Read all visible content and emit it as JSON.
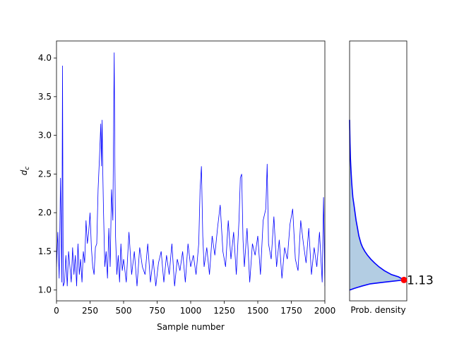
{
  "chart_data": [
    {
      "type": "line",
      "panel": "trace",
      "xlabel": "Sample number",
      "ylabel": "d_c",
      "xlim": [
        0,
        2000
      ],
      "ylim": [
        0.86,
        4.22
      ],
      "xticks": [
        "0",
        "250",
        "500",
        "750",
        "1000",
        "1250",
        "1500",
        "1750",
        "2000"
      ],
      "yticks": [
        "1.0",
        "1.5",
        "2.0",
        "2.5",
        "3.0",
        "3.5",
        "4.0"
      ],
      "grid": false,
      "series": [
        {
          "color": "#0000ff",
          "x": [
            0,
            10,
            20,
            30,
            40,
            45,
            50,
            60,
            70,
            80,
            90,
            100,
            110,
            120,
            130,
            140,
            150,
            160,
            170,
            180,
            190,
            200,
            210,
            220,
            230,
            240,
            250,
            260,
            270,
            280,
            290,
            300,
            310,
            320,
            330,
            335,
            340,
            345,
            350,
            360,
            370,
            380,
            390,
            400,
            410,
            420,
            430,
            435,
            440,
            450,
            460,
            470,
            480,
            490,
            500,
            520,
            540,
            560,
            580,
            600,
            620,
            640,
            660,
            680,
            700,
            720,
            740,
            760,
            780,
            800,
            820,
            840,
            860,
            880,
            900,
            920,
            940,
            960,
            980,
            1000,
            1020,
            1040,
            1060,
            1070,
            1080,
            1090,
            1100,
            1120,
            1140,
            1160,
            1180,
            1200,
            1220,
            1240,
            1260,
            1280,
            1300,
            1320,
            1340,
            1360,
            1370,
            1380,
            1390,
            1400,
            1420,
            1440,
            1460,
            1480,
            1500,
            1520,
            1540,
            1560,
            1570,
            1580,
            1600,
            1620,
            1640,
            1660,
            1680,
            1700,
            1720,
            1740,
            1760,
            1780,
            1800,
            1820,
            1840,
            1860,
            1880,
            1900,
            1920,
            1940,
            1960,
            1980,
            1990,
            2000
          ],
          "values": [
            1.3,
            1.75,
            1.15,
            2.45,
            1.1,
            3.9,
            1.05,
            1.1,
            1.45,
            1.05,
            1.5,
            1.3,
            1.1,
            1.55,
            1.2,
            1.45,
            1.05,
            1.6,
            1.2,
            1.4,
            1.1,
            1.5,
            1.35,
            1.9,
            1.6,
            1.75,
            2.0,
            1.55,
            1.3,
            1.2,
            1.55,
            1.6,
            2.3,
            2.7,
            3.15,
            2.6,
            3.2,
            2.5,
            2.05,
            1.3,
            1.5,
            1.15,
            1.8,
            1.3,
            2.3,
            1.9,
            4.07,
            2.6,
            1.7,
            1.2,
            1.45,
            1.1,
            1.6,
            1.25,
            1.4,
            1.1,
            1.75,
            1.2,
            1.5,
            1.05,
            1.55,
            1.3,
            1.2,
            1.6,
            1.1,
            1.4,
            1.05,
            1.35,
            1.5,
            1.1,
            1.45,
            1.2,
            1.6,
            1.05,
            1.4,
            1.25,
            1.5,
            1.1,
            1.6,
            1.3,
            1.45,
            1.2,
            1.6,
            2.3,
            2.6,
            1.7,
            1.3,
            1.55,
            1.2,
            1.7,
            1.45,
            1.8,
            2.1,
            1.5,
            1.3,
            1.9,
            1.4,
            1.75,
            1.2,
            1.9,
            2.45,
            2.5,
            1.65,
            1.3,
            1.8,
            1.1,
            1.6,
            1.45,
            1.7,
            1.2,
            1.9,
            2.05,
            2.63,
            1.6,
            1.4,
            1.95,
            1.3,
            1.65,
            1.15,
            1.55,
            1.4,
            1.85,
            2.05,
            1.4,
            1.25,
            1.9,
            1.6,
            1.35,
            1.8,
            1.2,
            1.55,
            1.3,
            1.75,
            1.1,
            2.2,
            1.05
          ]
        }
      ]
    },
    {
      "type": "area",
      "panel": "density",
      "xlabel": "Prob. density",
      "ylim": [
        0.86,
        4.22
      ],
      "grid": false,
      "peak_value": 1.13,
      "peak_label": "1.13",
      "peak_color": "#ff0000",
      "line_color": "#0000ff",
      "fill_color": "#b3cde3",
      "density": {
        "y": [
          1.0,
          1.02,
          1.05,
          1.08,
          1.1,
          1.13,
          1.17,
          1.2,
          1.25,
          1.3,
          1.35,
          1.4,
          1.45,
          1.5,
          1.55,
          1.6,
          1.7,
          1.8,
          1.9,
          2.0,
          2.1,
          2.2,
          2.3,
          2.4,
          2.5,
          2.6,
          2.7,
          2.8,
          2.9,
          3.0,
          3.1,
          3.2
        ],
        "values": [
          0.0,
          0.08,
          0.22,
          0.38,
          0.62,
          1.0,
          0.9,
          0.77,
          0.64,
          0.54,
          0.46,
          0.39,
          0.33,
          0.28,
          0.24,
          0.21,
          0.17,
          0.145,
          0.12,
          0.1,
          0.08,
          0.06,
          0.048,
          0.038,
          0.03,
          0.022,
          0.016,
          0.012,
          0.008,
          0.005,
          0.002,
          0.0
        ]
      }
    }
  ]
}
